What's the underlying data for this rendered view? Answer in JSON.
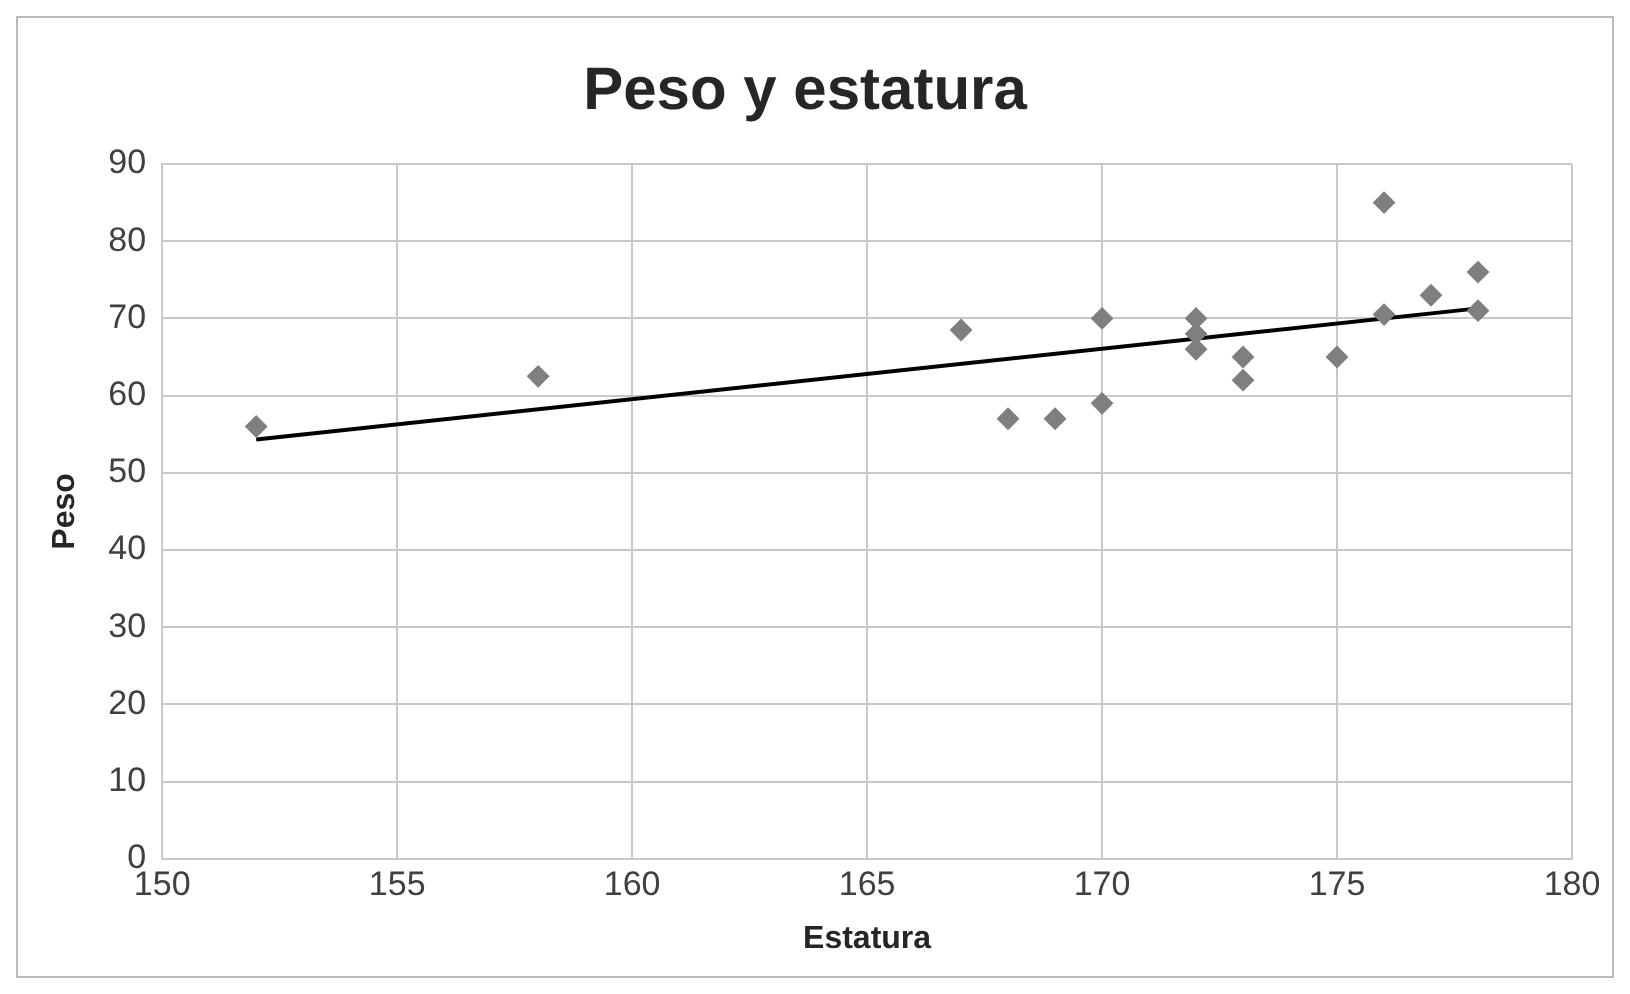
{
  "chart_data": {
    "type": "scatter",
    "title": "Peso y estatura",
    "xlabel": "Estatura",
    "ylabel": "Peso",
    "xlim": [
      150,
      180
    ],
    "xticks": [
      150,
      155,
      160,
      165,
      170,
      175,
      180
    ],
    "ylim": [
      0,
      90
    ],
    "yticks": [
      0,
      10,
      20,
      30,
      40,
      50,
      60,
      70,
      80,
      90
    ],
    "grid": true,
    "legend": false,
    "series": [
      {
        "type": "scatter",
        "marker": "diamond",
        "color": "#7f7f7f",
        "x": [
          152,
          158,
          167,
          168,
          169,
          170,
          170,
          172,
          172,
          172,
          173,
          173,
          175,
          176,
          176,
          177,
          178,
          178
        ],
        "values": [
          56,
          62.5,
          68.5,
          57,
          57,
          70,
          59,
          70,
          68,
          66,
          65,
          62,
          65,
          85,
          70.5,
          73,
          76,
          71
        ]
      },
      {
        "type": "line",
        "marker": "none",
        "color": "#000000",
        "x": [
          152,
          178
        ],
        "values": [
          54.3,
          71.3
        ]
      }
    ]
  }
}
